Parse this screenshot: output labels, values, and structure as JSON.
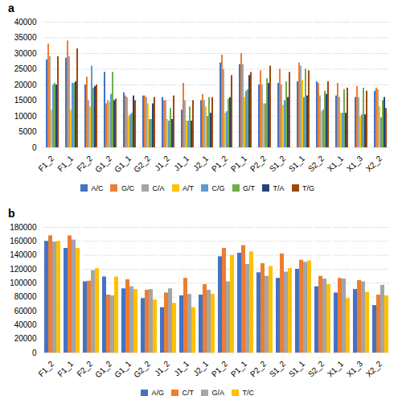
{
  "chart_data": [
    {
      "type": "bar",
      "title": "a",
      "categories": [
        "F1_2",
        "F1_1",
        "F2_2",
        "G1_2",
        "G1_1",
        "G2_2",
        "J1_2",
        "J1_1",
        "J2_1",
        "P1_2",
        "P1_1",
        "P2_2",
        "S1_2",
        "S1_1",
        "S2_2",
        "X1_1",
        "X1_3",
        "X2_2"
      ],
      "series": [
        {
          "name": "A/C",
          "color": "#4472C4",
          "values": [
            28000,
            28500,
            20000,
            24000,
            17500,
            16500,
            16000,
            12000,
            15000,
            27000,
            26500,
            20000,
            20500,
            21000,
            21000,
            16500,
            16000,
            18000
          ]
        },
        {
          "name": "G/C",
          "color": "#ED7D31",
          "values": [
            33000,
            34000,
            22500,
            14000,
            16500,
            16500,
            15000,
            20500,
            17000,
            29500,
            30000,
            24500,
            25000,
            27000,
            20500,
            20500,
            19500,
            19000
          ]
        },
        {
          "name": "C/A",
          "color": "#A5A5A5",
          "values": [
            29000,
            29000,
            15000,
            15000,
            16000,
            16000,
            15000,
            15000,
            15000,
            25000,
            26500,
            20000,
            20000,
            26000,
            16500,
            16000,
            16000,
            18500
          ]
        },
        {
          "name": "A/T",
          "color": "#FFC000",
          "values": [
            12000,
            12000,
            13000,
            14500,
            10000,
            14000,
            9000,
            8500,
            13000,
            11000,
            16000,
            14000,
            13500,
            21500,
            11500,
            11000,
            10000,
            13000
          ]
        },
        {
          "name": "C/G",
          "color": "#5B9BD5",
          "values": [
            20000,
            20500,
            26000,
            17000,
            10500,
            9000,
            8500,
            8500,
            10000,
            11500,
            18000,
            14000,
            15000,
            16000,
            12000,
            11000,
            10500,
            9500
          ]
        },
        {
          "name": "G/T",
          "color": "#70AD47",
          "values": [
            20500,
            20500,
            19000,
            24000,
            11000,
            9000,
            12500,
            13000,
            16000,
            15500,
            18500,
            22000,
            21000,
            25000,
            18000,
            18500,
            19000,
            15000
          ]
        },
        {
          "name": "T/A",
          "color": "#264478",
          "values": [
            20000,
            21000,
            19500,
            15000,
            16500,
            14000,
            9000,
            8500,
            11000,
            16000,
            23000,
            20500,
            16000,
            16500,
            17000,
            11000,
            10500,
            16000
          ]
        },
        {
          "name": "T/G",
          "color": "#9E480E",
          "values": [
            29000,
            31500,
            20000,
            15500,
            15000,
            16000,
            16500,
            15000,
            16000,
            23000,
            24000,
            26000,
            24000,
            24500,
            21000,
            19000,
            18000,
            12500
          ]
        }
      ],
      "ylim": [
        0,
        40000
      ],
      "yticks": [
        0,
        5000,
        10000,
        15000,
        20000,
        25000,
        30000,
        35000,
        40000
      ],
      "grid": true,
      "legend": "bottom"
    },
    {
      "type": "bar",
      "title": "b",
      "categories": [
        "F1_2",
        "F1_1",
        "F2_2",
        "G1_2",
        "G1_1",
        "G2_2",
        "J1_2",
        "J1_1",
        "J2_1",
        "P1_2",
        "P1_1",
        "P2_2",
        "S1_2",
        "S1_1",
        "S2_2",
        "X1_1",
        "X1_3",
        "X2_2"
      ],
      "series": [
        {
          "name": "A/G",
          "color": "#4472C4",
          "values": [
            160000,
            150000,
            102000,
            109000,
            92000,
            78000,
            65000,
            82000,
            83000,
            138000,
            143000,
            115000,
            107000,
            120000,
            95000,
            86000,
            91000,
            68000
          ]
        },
        {
          "name": "C/T",
          "color": "#ED7D31",
          "values": [
            168000,
            168000,
            103000,
            83000,
            105000,
            90000,
            86000,
            107000,
            98000,
            150000,
            154000,
            128000,
            142000,
            133000,
            110000,
            107000,
            104000,
            83000
          ]
        },
        {
          "name": "G/A",
          "color": "#A5A5A5",
          "values": [
            159000,
            162000,
            118000,
            82000,
            95000,
            91000,
            92000,
            84000,
            90000,
            102000,
            127000,
            110000,
            116000,
            130000,
            106000,
            106000,
            102000,
            97000
          ]
        },
        {
          "name": "T/C",
          "color": "#FFC000",
          "values": [
            160000,
            150000,
            121000,
            109000,
            91000,
            76000,
            71000,
            65000,
            84000,
            140000,
            145000,
            124000,
            121000,
            132000,
            98000,
            78000,
            87000,
            82000
          ]
        }
      ],
      "ylim": [
        0,
        180000
      ],
      "yticks": [
        0,
        20000,
        40000,
        60000,
        80000,
        100000,
        120000,
        140000,
        160000,
        180000
      ],
      "grid": true,
      "legend": "bottom"
    }
  ]
}
